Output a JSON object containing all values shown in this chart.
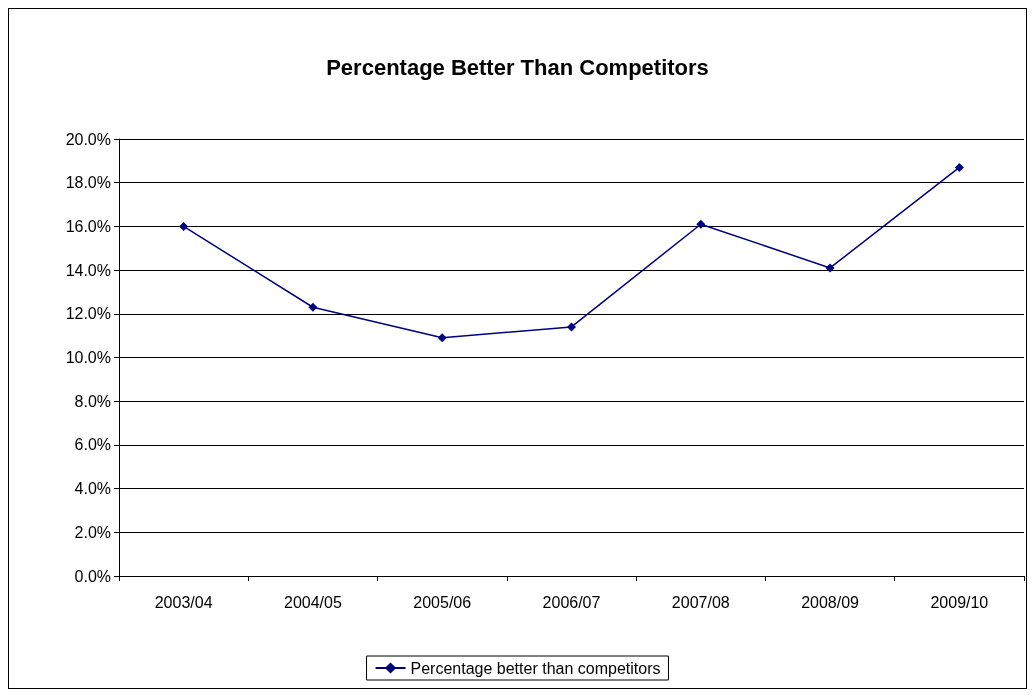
{
  "chart_data": {
    "type": "line",
    "title": "Percentage Better Than Competitors",
    "categories": [
      "2003/04",
      "2004/05",
      "2005/06",
      "2006/07",
      "2007/08",
      "2008/09",
      "2009/10"
    ],
    "series": [
      {
        "name": "Percentage better than competitors",
        "color": "#000080",
        "values": [
          16.0,
          12.3,
          10.9,
          11.4,
          16.1,
          14.1,
          18.7
        ]
      }
    ],
    "ylim": [
      0,
      20
    ],
    "yticks": [
      {
        "value": 0,
        "label": "0.0%"
      },
      {
        "value": 2,
        "label": "2.0%"
      },
      {
        "value": 4,
        "label": "4.0%"
      },
      {
        "value": 6,
        "label": "6.0%"
      },
      {
        "value": 8,
        "label": "8.0%"
      },
      {
        "value": 10,
        "label": "10.0%"
      },
      {
        "value": 12,
        "label": "12.0%"
      },
      {
        "value": 14,
        "label": "14.0%"
      },
      {
        "value": 16,
        "label": "16.0%"
      },
      {
        "value": 18,
        "label": "18.0%"
      },
      {
        "value": 20,
        "label": "20.0%"
      }
    ],
    "grid": "y",
    "legend": "bottom",
    "marker": "diamond",
    "line_style": "solid"
  }
}
